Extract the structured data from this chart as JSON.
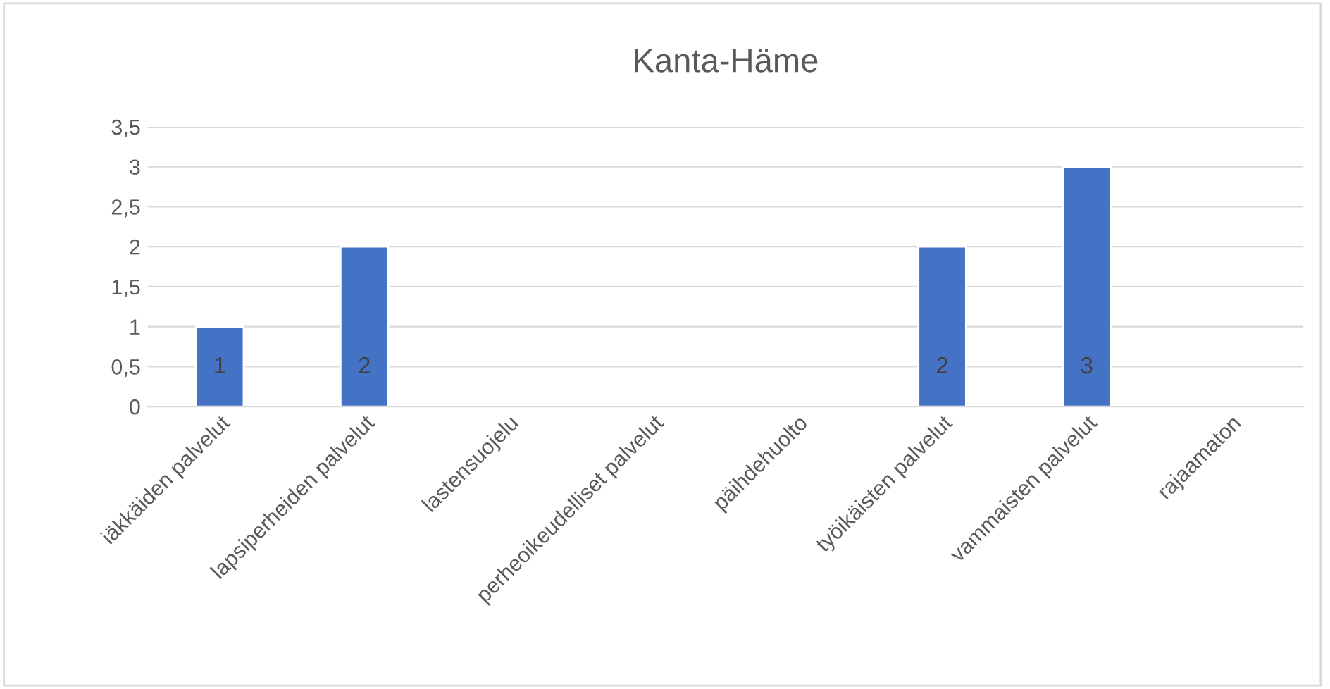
{
  "chart_data": {
    "type": "bar",
    "title": "Kanta-Häme",
    "categories": [
      "iäkkäiden palvelut",
      "lapsiperheiden palvelut",
      "lastensuojelu",
      "perheoikeudelliset palvelut",
      "päihdehuolto",
      "työikäisten palvelut",
      "vammaisten palvelut",
      "rajaamaton"
    ],
    "values": [
      1,
      2,
      null,
      null,
      null,
      2,
      3,
      null
    ],
    "color": "#4472c4",
    "ylim": [
      0,
      3.5
    ],
    "yticks": [
      0,
      {
        "value": 0.5,
        "label": "0,5"
      },
      1,
      {
        "value": 1.5,
        "label": "1,5"
      },
      2,
      {
        "value": 2.5,
        "label": "2,5"
      },
      3,
      {
        "value": 3.5,
        "label": "3,5"
      }
    ],
    "grid": "y",
    "data_labels": true
  }
}
